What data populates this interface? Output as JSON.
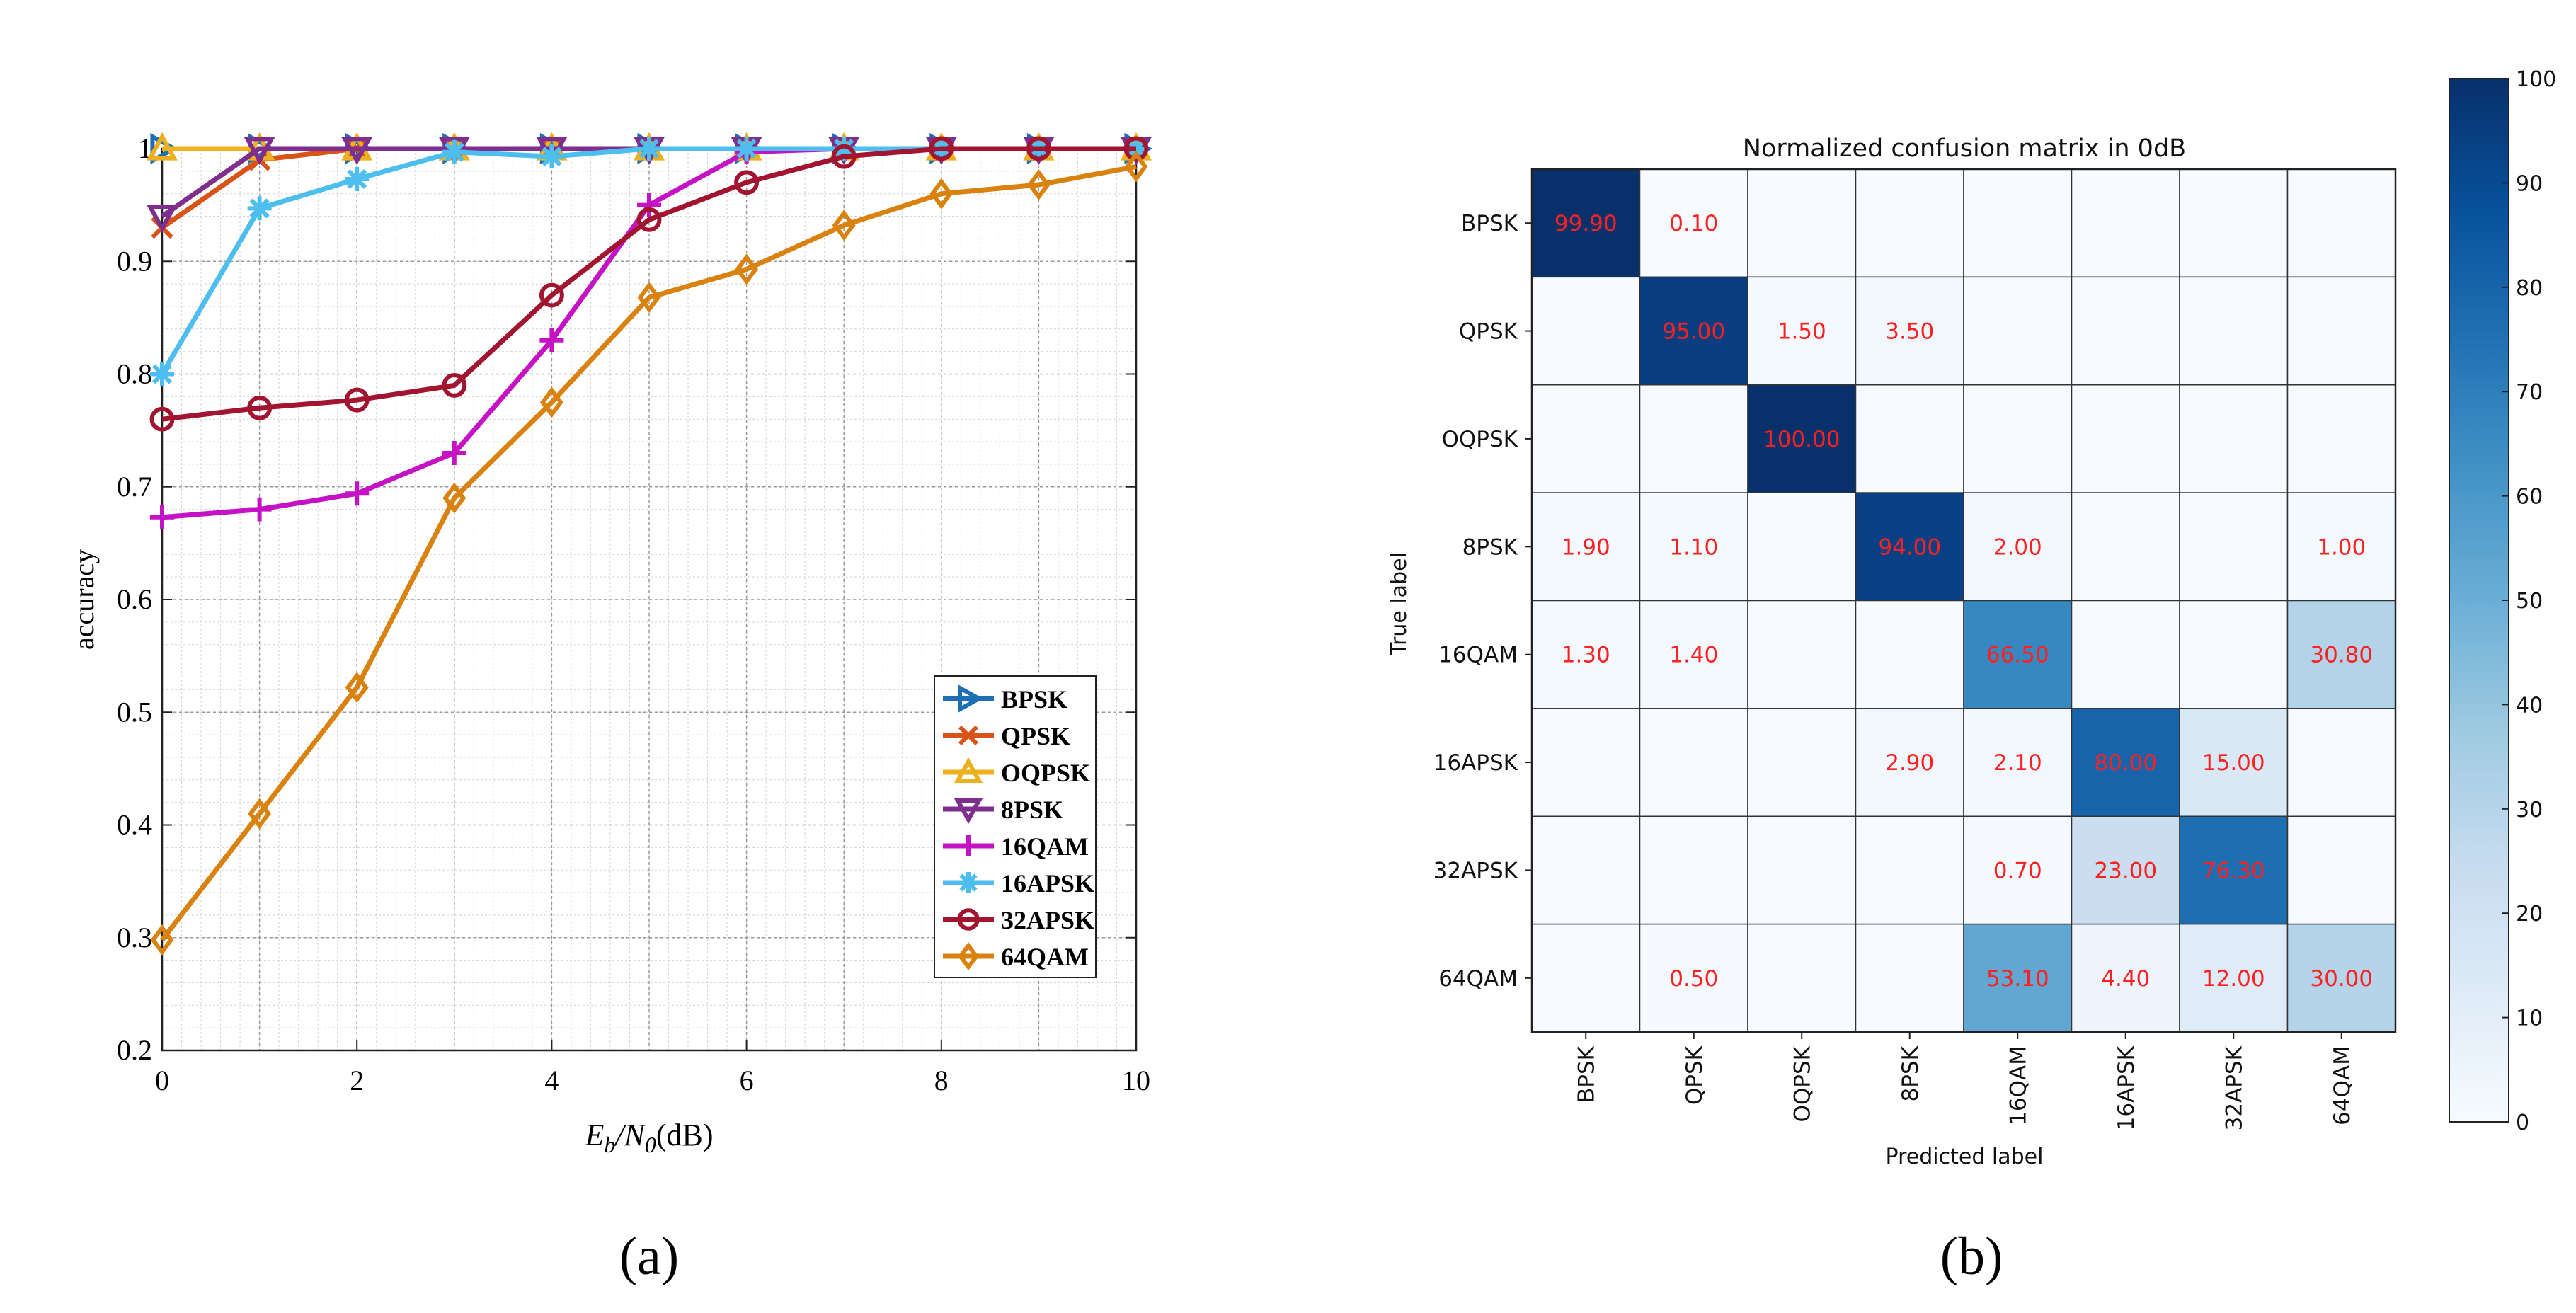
{
  "chart_data": [
    {
      "type": "line",
      "panel_label": "(a)",
      "title": "",
      "xlabel_main": "E",
      "xlabel_sub1": "b",
      "xlabel_slash": "/N",
      "xlabel_sub2": "0",
      "xlabel_unit": "(dB)",
      "ylabel": "accuracy",
      "xlim": [
        0,
        10
      ],
      "ylim": [
        0.2,
        1
      ],
      "grid": true,
      "legend_position": "lower-right",
      "xticks": [
        0,
        2,
        4,
        6,
        8,
        10
      ],
      "yticks": [
        0.2,
        0.3,
        0.4,
        0.5,
        0.6,
        0.7,
        0.8,
        0.9,
        1
      ],
      "ytick_labels": [
        "0.2",
        "0.3",
        "0.4",
        "0.5",
        "0.6",
        "0.7",
        "0.8",
        "0.9",
        "1"
      ],
      "x": [
        0,
        1,
        2,
        3,
        4,
        5,
        6,
        7,
        8,
        9,
        10
      ],
      "series": [
        {
          "name": "BPSK",
          "color": "#1f6fb5",
          "marker": "tri-right",
          "values": [
            1,
            1,
            1,
            1,
            1,
            1,
            1,
            1,
            1,
            1,
            1
          ]
        },
        {
          "name": "QPSK",
          "color": "#d95319",
          "marker": "x",
          "values": [
            0.93,
            0.99,
            1,
            1,
            1,
            1,
            1,
            1,
            1,
            1,
            1
          ]
        },
        {
          "name": "OQPSK",
          "color": "#edb120",
          "marker": "tri-up",
          "values": [
            1,
            1,
            1,
            1,
            1,
            1,
            1,
            1,
            1,
            1,
            1
          ]
        },
        {
          "name": "8PSK",
          "color": "#7e2f8e",
          "marker": "tri-down",
          "values": [
            0.94,
            1,
            1,
            1,
            1,
            1,
            1,
            1,
            1,
            1,
            1
          ]
        },
        {
          "name": "16QAM",
          "color": "#c412c4",
          "marker": "plus",
          "values": [
            0.673,
            0.68,
            0.694,
            0.73,
            0.83,
            0.95,
            0.997,
            1,
            1,
            1,
            1
          ]
        },
        {
          "name": "16APSK",
          "color": "#4dbeee",
          "marker": "star",
          "values": [
            0.8,
            0.947,
            0.973,
            0.997,
            0.993,
            1,
            1,
            1,
            1,
            1,
            1
          ]
        },
        {
          "name": "32APSK",
          "color": "#a2142f",
          "marker": "circle",
          "values": [
            0.76,
            0.77,
            0.777,
            0.79,
            0.87,
            0.937,
            0.97,
            0.993,
            1,
            1,
            1
          ]
        },
        {
          "name": "64QAM",
          "color": "#d9820f",
          "marker": "diamond",
          "values": [
            0.298,
            0.41,
            0.522,
            0.69,
            0.775,
            0.868,
            0.893,
            0.932,
            0.96,
            0.968,
            0.984
          ]
        }
      ]
    },
    {
      "type": "heatmap",
      "panel_label": "(b)",
      "title": "Normalized confusion matrix in 0dB",
      "xlabel": "Predicted label",
      "ylabel": "True label",
      "labels": [
        "BPSK",
        "QPSK",
        "OQPSK",
        "8PSK",
        "16QAM",
        "16APSK",
        "32APSK",
        "64QAM"
      ],
      "value_color": "#ff2020",
      "colorbar": {
        "min": 0,
        "max": 100,
        "ticks": [
          "0",
          "10",
          "20",
          "30",
          "40",
          "50",
          "60",
          "70",
          "80",
          "90",
          "100"
        ]
      },
      "matrix": [
        [
          99.9,
          0.1,
          0,
          0,
          0,
          0,
          0,
          0
        ],
        [
          0,
          95.0,
          1.5,
          3.5,
          0,
          0,
          0,
          0
        ],
        [
          0,
          0,
          100.0,
          0,
          0,
          0,
          0,
          0
        ],
        [
          1.9,
          1.1,
          0,
          94.0,
          2.0,
          0,
          0,
          1.0
        ],
        [
          1.3,
          1.4,
          0,
          0,
          66.5,
          0,
          0,
          30.8
        ],
        [
          0,
          0,
          0,
          2.9,
          2.1,
          80.0,
          15.0,
          0
        ],
        [
          0,
          0,
          0,
          0,
          0.7,
          23.0,
          76.3,
          0
        ],
        [
          0,
          0.5,
          0,
          0,
          53.1,
          4.4,
          12.0,
          30.0
        ]
      ],
      "cell_labels": [
        [
          "99.90",
          "0.10",
          "",
          "",
          "",
          "",
          "",
          ""
        ],
        [
          "",
          "95.00",
          "1.50",
          "3.50",
          "",
          "",
          "",
          ""
        ],
        [
          "",
          "",
          "100.00",
          "",
          "",
          "",
          "",
          ""
        ],
        [
          "1.90",
          "1.10",
          "",
          "94.00",
          "2.00",
          "",
          "",
          "1.00"
        ],
        [
          "1.30",
          "1.40",
          "",
          "",
          "66.50",
          "",
          "",
          "30.80"
        ],
        [
          "",
          "",
          "",
          "2.90",
          "2.10",
          "80.00",
          "15.00",
          ""
        ],
        [
          "",
          "",
          "",
          "",
          "0.70",
          "23.00",
          "76.30",
          ""
        ],
        [
          "",
          "0.50",
          "",
          "",
          "53.10",
          "4.40",
          "12.00",
          "30.00"
        ]
      ]
    }
  ]
}
